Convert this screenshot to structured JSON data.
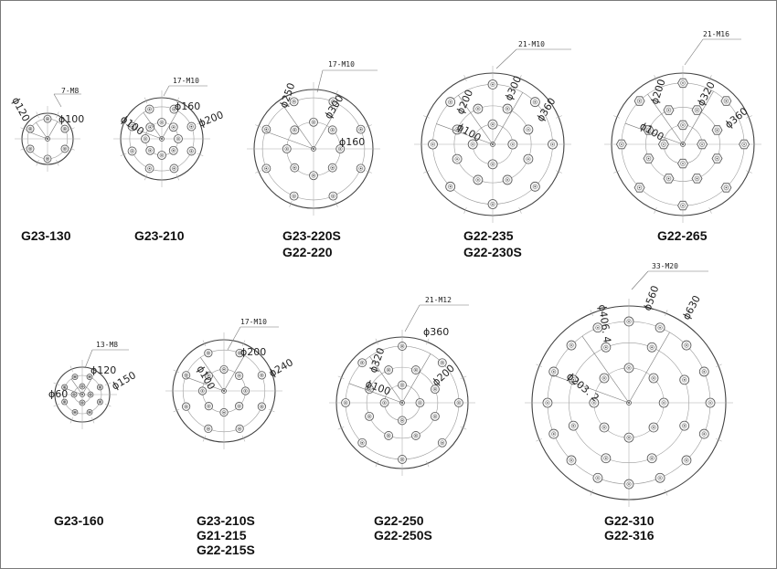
{
  "flanges": [
    {
      "id": "G23-130",
      "models": [
        "G23-130"
      ],
      "holes": "7-M8",
      "diameters": [
        "ϕ120",
        "ϕ100"
      ],
      "rings": [
        {
          "count": 6,
          "size": 4
        }
      ]
    },
    {
      "id": "G23-210",
      "models": [
        "G23-210"
      ],
      "holes": "17-M10",
      "diameters": [
        "ϕ160",
        "ϕ100",
        "ϕ200"
      ],
      "rings": [
        {
          "count": 8,
          "size": 4.5
        },
        {
          "count": 8,
          "size": 4.5
        }
      ]
    },
    {
      "id": "G23-220S",
      "models": [
        "G23-220S",
        "G22-220"
      ],
      "holes": "17-M10",
      "diameters": [
        "ϕ250",
        "ϕ300",
        "ϕ160"
      ],
      "rings": [
        {
          "count": 8,
          "size": 4.5
        },
        {
          "count": 8,
          "size": 4.5
        }
      ]
    },
    {
      "id": "G22-235",
      "models": [
        "G22-235",
        "G22-230S"
      ],
      "holes": "21-M10",
      "diameters": [
        "ϕ200",
        "ϕ300",
        "ϕ360",
        "ϕ100"
      ],
      "rings": [
        {
          "count": 4,
          "size": 5
        },
        {
          "count": 8,
          "size": 5
        },
        {
          "count": 8,
          "size": 5
        }
      ]
    },
    {
      "id": "G22-265",
      "models": [
        "G22-265"
      ],
      "holes": "21-M16",
      "diameters": [
        "ϕ200",
        "ϕ320",
        "ϕ100",
        "ϕ360"
      ],
      "rings": [
        {
          "count": 4,
          "size": 5.5
        },
        {
          "count": 8,
          "size": 5.5
        },
        {
          "count": 8,
          "size": 5.5
        }
      ]
    },
    {
      "id": "G23-160",
      "models": [
        "G23-160"
      ],
      "holes": "13-M8",
      "diameters": [
        "ϕ120",
        "ϕ60",
        "ϕ150"
      ],
      "rings": [
        {
          "count": 4,
          "size": 3
        },
        {
          "count": 8,
          "size": 3
        }
      ]
    },
    {
      "id": "G23-210S",
      "models": [
        "G23-210S",
        "G21-215",
        "G22-215S"
      ],
      "holes": "17-M10",
      "diameters": [
        "ϕ200",
        "ϕ100",
        "ϕ240"
      ],
      "rings": [
        {
          "count": 8,
          "size": 4.2
        },
        {
          "count": 8,
          "size": 4.2
        }
      ]
    },
    {
      "id": "G22-250",
      "models": [
        "G22-250",
        "G22-250S"
      ],
      "holes": "21-M12",
      "diameters": [
        "ϕ360",
        "ϕ320",
        "ϕ100",
        "ϕ200"
      ],
      "rings": [
        {
          "count": 4,
          "size": 4.5
        },
        {
          "count": 8,
          "size": 4.5
        },
        {
          "count": 8,
          "size": 4.5
        }
      ]
    },
    {
      "id": "G22-310",
      "models": [
        "G22-310",
        "G22-316"
      ],
      "holes": "33-M20",
      "diameters": [
        "ϕ406. 4",
        "ϕ560",
        "ϕ630",
        "ϕ203. 2"
      ],
      "rings": [
        {
          "count": 8,
          "size": 5
        },
        {
          "count": 8,
          "size": 5
        },
        {
          "count": 16,
          "size": 5
        }
      ]
    }
  ]
}
